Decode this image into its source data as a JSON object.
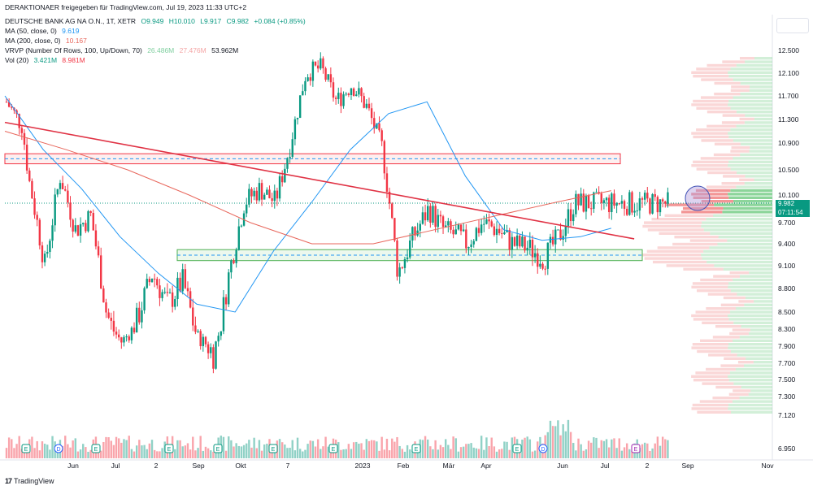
{
  "header": {
    "source": "DERAKTIONAER freigegeben für TradingView.com, Jul 19, 2023 11:33 UTC+2",
    "symbol": "DEUTSCHE BANK AG NA O.N., 1T, XETR",
    "open": "O9.949",
    "high": "H10.010",
    "low": "L9.917",
    "close": "C9.982",
    "change": "+0.084 (+0.85%)",
    "ma50_label": "MA (50, close, 0)",
    "ma50_value": "9.619",
    "ma200_label": "MA (200, close, 0)",
    "ma200_value": "10.167",
    "vrvp_label": "VRVP (Number Of Rows, 100, Up/Down, 70)",
    "vrvp_up": "26.486M",
    "vrvp_down": "27.476M",
    "vrvp_total": "53.962M",
    "vol_label": "Vol (20)",
    "vol_value": "3.421M",
    "vol_ma": "8.981M"
  },
  "price_badge": {
    "price": "9.982",
    "countdown": "07:11:54"
  },
  "footer": {
    "brand": "TradingView",
    "logo": "17"
  },
  "colors": {
    "up": "#089981",
    "down": "#f23645",
    "ma50": "#2196f3",
    "ma200": "#e8675c",
    "trendline": "#e03244"
  },
  "chart_data": {
    "type": "candlestick",
    "y_ticks": [
      12.5,
      12.1,
      11.7,
      11.3,
      10.9,
      10.5,
      10.1,
      9.7,
      9.4,
      9.1,
      8.8,
      8.5,
      8.3,
      7.9,
      7.7,
      7.5,
      7.3,
      7.12,
      6.95
    ],
    "y_tick_labels": [
      "12.500",
      "12.100",
      "11.700",
      "11.300",
      "10.900",
      "10.500",
      "10.100",
      "9.700",
      "9.400",
      "9.100",
      "8.800",
      "8.500",
      "8.300",
      "7.900",
      "7.700",
      "7.500",
      "7.300",
      "7.120",
      "6.950"
    ],
    "x_labels": [
      "Jun",
      "Jul",
      "2",
      "Sep",
      "Okt",
      "7",
      "2023",
      "Feb",
      "Mär",
      "Apr",
      "Jun",
      "Jul",
      "2",
      "Sep",
      "Nov"
    ],
    "last_price": 9.982,
    "resistance_zone": [
      10.59,
      10.74
    ],
    "support_zone": [
      9.17,
      9.32
    ],
    "trendline": {
      "from": [
        0,
        11.25
      ],
      "to": [
        0.82,
        9.47
      ]
    },
    "series_price": {
      "name": "Close",
      "x": [
        0,
        0.02,
        0.03,
        0.05,
        0.07,
        0.09,
        0.11,
        0.13,
        0.15,
        0.17,
        0.19,
        0.21,
        0.23,
        0.25,
        0.27,
        0.29,
        0.31,
        0.33,
        0.35,
        0.37,
        0.39,
        0.41,
        0.43,
        0.45,
        0.47,
        0.49,
        0.51,
        0.53,
        0.55,
        0.57,
        0.59,
        0.6,
        0.62,
        0.64,
        0.66,
        0.68,
        0.7,
        0.72,
        0.74,
        0.76,
        0.78,
        0.8,
        0.82
      ],
      "y": [
        11.6,
        11.2,
        10.3,
        9.1,
        10.4,
        9.6,
        9.8,
        8.5,
        8.0,
        8.4,
        9.0,
        8.6,
        8.9,
        8.1,
        7.8,
        9.0,
        10.0,
        10.2,
        10.0,
        10.9,
        12.1,
        12.2,
        11.6,
        11.9,
        11.5,
        10.8,
        9.0,
        9.5,
        9.9,
        9.6,
        9.5,
        9.4,
        9.7,
        9.6,
        9.4,
        9.35,
        9.2,
        9.5,
        9.98,
        9.98,
        9.98,
        9.98,
        9.98
      ]
    },
    "series_ma50": {
      "name": "MA (50, close, 0)",
      "x": [
        0,
        0.05,
        0.1,
        0.15,
        0.2,
        0.25,
        0.3,
        0.35,
        0.4,
        0.45,
        0.5,
        0.55,
        0.6,
        0.65,
        0.7,
        0.75,
        0.79
      ],
      "y": [
        11.7,
        10.8,
        10.2,
        9.5,
        9.0,
        8.6,
        8.5,
        9.3,
        10.0,
        10.8,
        11.4,
        11.6,
        10.4,
        9.6,
        9.45,
        9.5,
        9.62
      ]
    },
    "series_ma200": {
      "name": "MA (200, close, 0)",
      "x": [
        0,
        0.08,
        0.16,
        0.24,
        0.32,
        0.4,
        0.48,
        0.56,
        0.64,
        0.72,
        0.79
      ],
      "y": [
        11.1,
        10.8,
        10.5,
        10.1,
        9.7,
        9.4,
        9.4,
        9.6,
        9.8,
        10.0,
        10.17
      ]
    },
    "volume_profile_note": "VRVP histogram on right side"
  }
}
